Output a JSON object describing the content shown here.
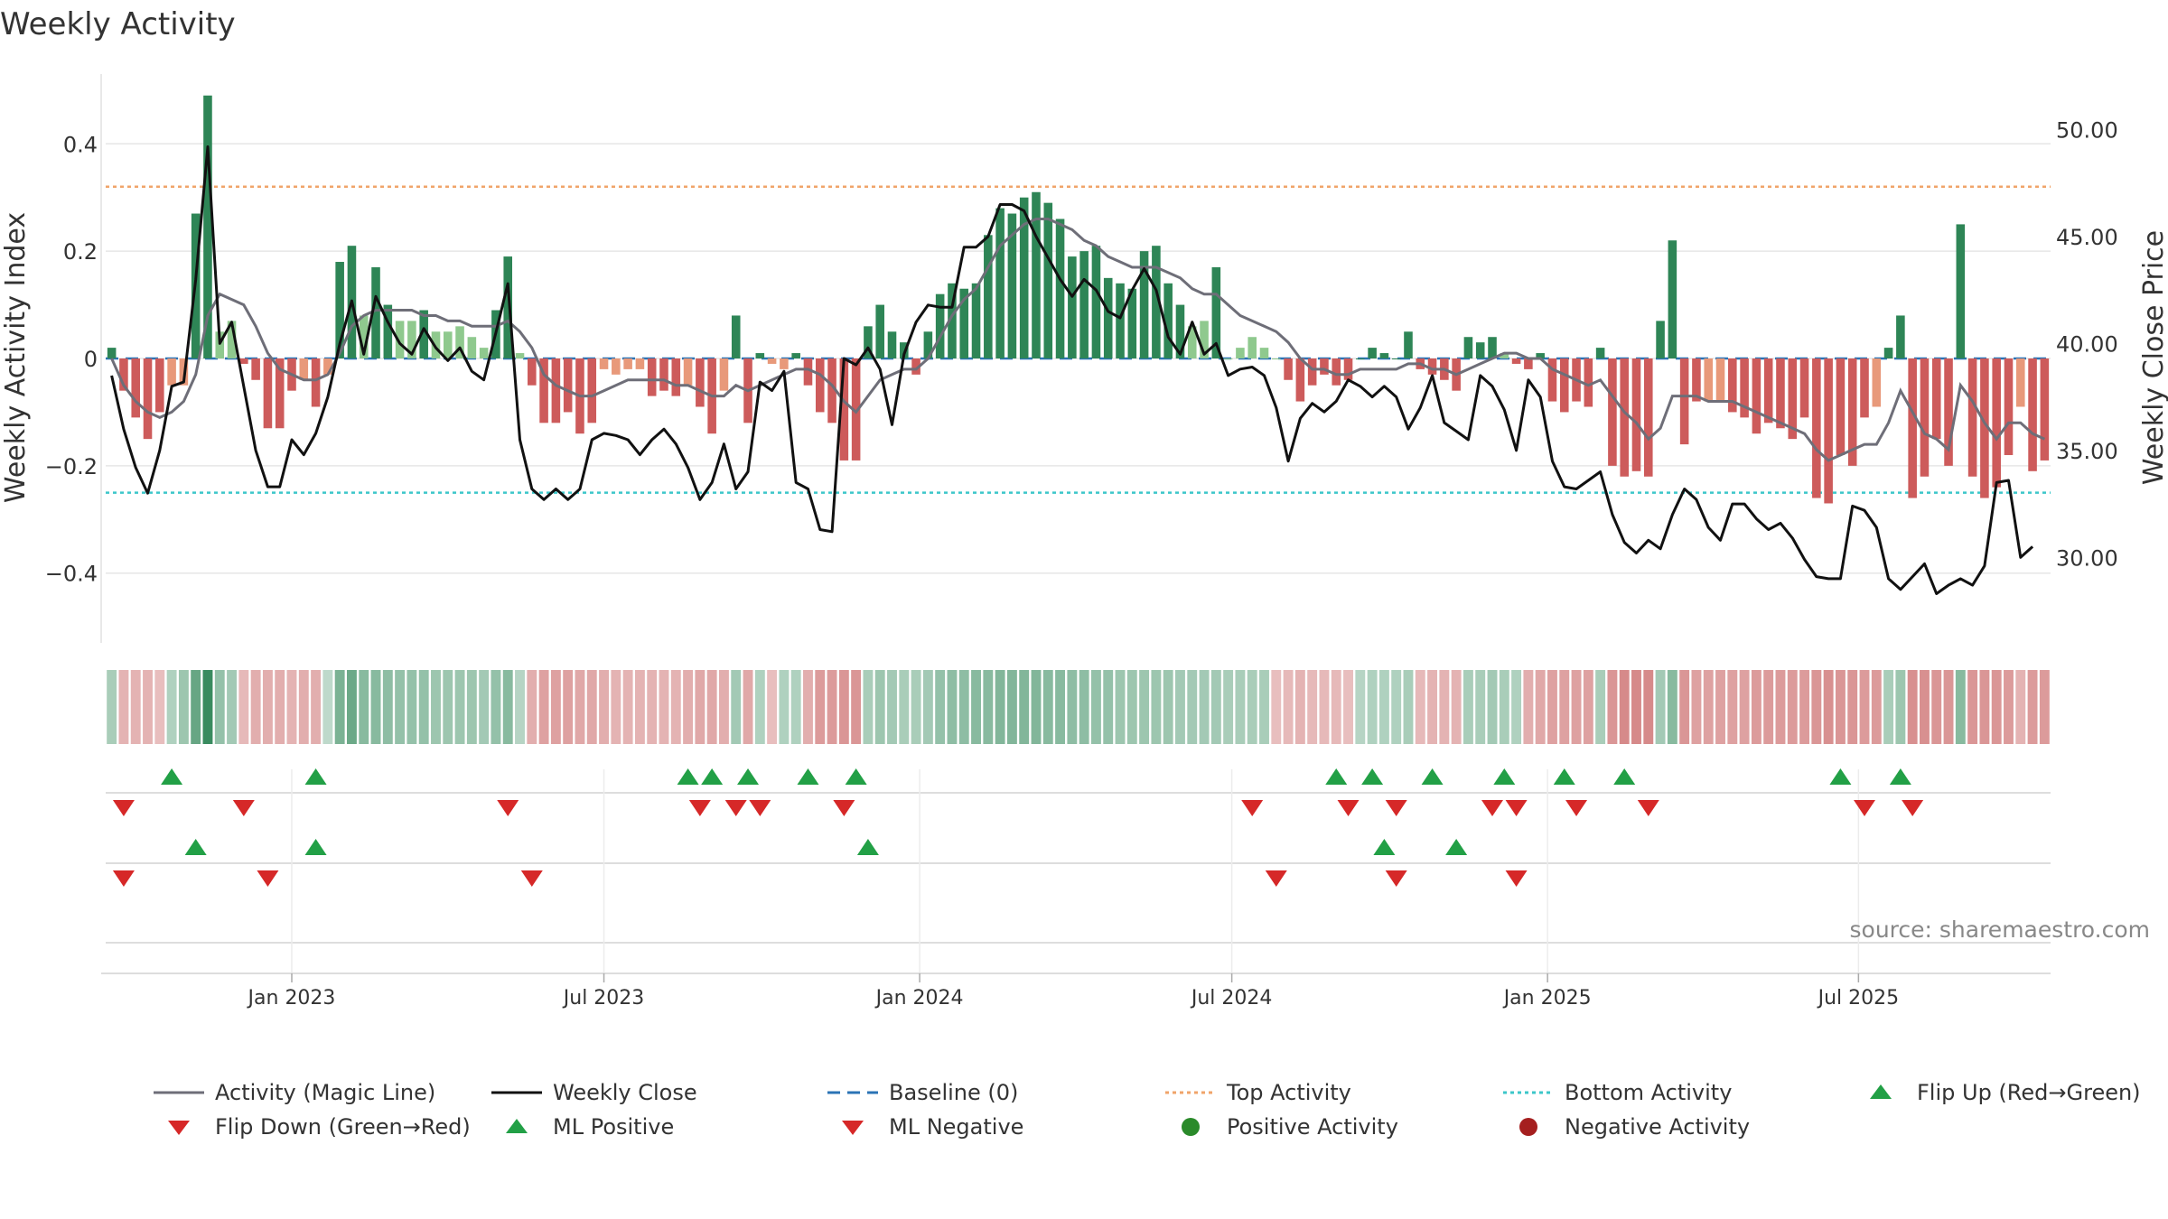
{
  "title": "Weekly Activity",
  "source": "source: sharemaestro.com",
  "colors": {
    "strong_green": "#2e8556",
    "light_green": "#8fc98e",
    "strong_red": "#cd5b5b",
    "light_red": "#e8997a",
    "magic_line": "#6e6e78",
    "close_line": "#111111",
    "baseline": "#2b73b5",
    "top_line": "#f0a46a",
    "bottom_line": "#3cc6c9",
    "flip_up": "#22a046",
    "flip_down": "#d62828",
    "positive_dot": "#2a8a2a",
    "negative_dot": "#a51f1f"
  },
  "chart_data": {
    "type": "bar",
    "xlabel": "",
    "ylabel": "Weekly Activity Index",
    "y2label": "Weekly Close Price",
    "ylim": [
      -0.53,
      0.53
    ],
    "y2lim": [
      26.0,
      52.6
    ],
    "y_ticks": [
      "0.4",
      "0.2",
      "0",
      "−0.2",
      "−0.4"
    ],
    "y_tick_values": [
      0.4,
      0.2,
      0,
      -0.2,
      -0.4
    ],
    "y2_ticks": [
      "50.00",
      "45.00",
      "40.00",
      "35.00",
      "30.00"
    ],
    "y2_tick_values": [
      50,
      45,
      40,
      35,
      30
    ],
    "x_ticks": [
      "Jan 2023",
      "Jul 2023",
      "Jan 2024",
      "Jul 2024",
      "Jan 2025",
      "Jul 2025"
    ],
    "x_tick_weeks": [
      15,
      41,
      67.3,
      93.3,
      119.6,
      145.5
    ],
    "top_activity": 0.32,
    "bottom_activity": -0.25,
    "baseline": 0,
    "activity": [
      0.02,
      -0.06,
      -0.11,
      -0.15,
      -0.1,
      -0.05,
      -0.05,
      0.27,
      0.49,
      0.05,
      0.07,
      -0.01,
      -0.04,
      -0.13,
      -0.13,
      -0.06,
      -0.04,
      -0.09,
      -0.03,
      0.18,
      0.21,
      0.08,
      0.17,
      0.1,
      0.07,
      0.07,
      0.09,
      0.05,
      0.05,
      0.06,
      0.04,
      0.02,
      0.09,
      0.19,
      0.01,
      -0.05,
      -0.12,
      -0.12,
      -0.1,
      -0.14,
      -0.12,
      -0.02,
      -0.03,
      -0.02,
      -0.02,
      -0.07,
      -0.06,
      -0.07,
      -0.05,
      -0.09,
      -0.14,
      -0.06,
      0.08,
      -0.12,
      0.01,
      -0.01,
      -0.02,
      0.01,
      -0.05,
      -0.1,
      -0.12,
      -0.19,
      -0.19,
      0.06,
      0.1,
      0.05,
      0.03,
      -0.03,
      0.05,
      0.12,
      0.14,
      0.13,
      0.14,
      0.23,
      0.28,
      0.27,
      0.3,
      0.31,
      0.29,
      0.26,
      0.19,
      0.2,
      0.21,
      0.15,
      0.14,
      0.13,
      0.2,
      0.21,
      0.14,
      0.1,
      0.06,
      0.07,
      0.17,
      0.0,
      0.02,
      0.04,
      0.02,
      0.0,
      -0.04,
      -0.08,
      -0.05,
      -0.03,
      -0.05,
      -0.04,
      0.0,
      0.02,
      0.01,
      0.0,
      0.05,
      -0.02,
      -0.03,
      -0.04,
      -0.06,
      0.04,
      0.03,
      0.04,
      0.01,
      -0.01,
      -0.02,
      0.01,
      -0.08,
      -0.1,
      -0.08,
      -0.09,
      0.02,
      -0.2,
      -0.22,
      -0.21,
      -0.22,
      0.07,
      0.22,
      -0.16,
      -0.08,
      -0.08,
      -0.08,
      -0.1,
      -0.11,
      -0.14,
      -0.12,
      -0.13,
      -0.15,
      -0.11,
      -0.26,
      -0.27,
      -0.18,
      -0.2,
      -0.11,
      -0.09,
      0.02,
      0.08,
      -0.26,
      -0.22,
      -0.15,
      -0.2,
      0.25,
      -0.22,
      -0.26,
      -0.24,
      -0.18,
      -0.09,
      -0.21,
      -0.19
    ],
    "magic_line": [
      0.0,
      -0.05,
      -0.08,
      -0.1,
      -0.11,
      -0.1,
      -0.08,
      -0.03,
      0.08,
      0.12,
      0.11,
      0.1,
      0.06,
      0.01,
      -0.02,
      -0.03,
      -0.04,
      -0.04,
      -0.03,
      0.01,
      0.06,
      0.08,
      0.09,
      0.09,
      0.09,
      0.09,
      0.08,
      0.08,
      0.07,
      0.07,
      0.06,
      0.06,
      0.06,
      0.07,
      0.05,
      0.02,
      -0.03,
      -0.05,
      -0.06,
      -0.07,
      -0.07,
      -0.06,
      -0.05,
      -0.04,
      -0.04,
      -0.04,
      -0.04,
      -0.05,
      -0.05,
      -0.06,
      -0.07,
      -0.07,
      -0.05,
      -0.06,
      -0.05,
      -0.04,
      -0.03,
      -0.02,
      -0.02,
      -0.03,
      -0.05,
      -0.08,
      -0.1,
      -0.07,
      -0.04,
      -0.03,
      -0.02,
      -0.02,
      0.0,
      0.04,
      0.08,
      0.11,
      0.13,
      0.17,
      0.21,
      0.23,
      0.25,
      0.26,
      0.26,
      0.25,
      0.24,
      0.22,
      0.21,
      0.19,
      0.18,
      0.17,
      0.17,
      0.17,
      0.16,
      0.15,
      0.13,
      0.12,
      0.12,
      0.1,
      0.08,
      0.07,
      0.06,
      0.05,
      0.03,
      0.0,
      -0.02,
      -0.02,
      -0.03,
      -0.03,
      -0.02,
      -0.02,
      -0.02,
      -0.02,
      -0.01,
      -0.01,
      -0.02,
      -0.02,
      -0.03,
      -0.02,
      -0.01,
      0.0,
      0.01,
      0.01,
      0.0,
      0.0,
      -0.02,
      -0.03,
      -0.04,
      -0.05,
      -0.04,
      -0.07,
      -0.1,
      -0.12,
      -0.15,
      -0.13,
      -0.07,
      -0.07,
      -0.07,
      -0.08,
      -0.08,
      -0.08,
      -0.09,
      -0.1,
      -0.11,
      -0.12,
      -0.13,
      -0.14,
      -0.17,
      -0.19,
      -0.18,
      -0.17,
      -0.16,
      -0.16,
      -0.12,
      -0.06,
      -0.1,
      -0.14,
      -0.15,
      -0.17,
      -0.05,
      -0.08,
      -0.12,
      -0.15,
      -0.12,
      -0.12,
      -0.14,
      -0.15
    ],
    "close": [
      38.5,
      36.0,
      34.2,
      33.0,
      35.0,
      38.0,
      38.2,
      43.0,
      49.2,
      40.0,
      41.0,
      38.0,
      35.0,
      33.3,
      33.3,
      35.5,
      34.8,
      35.8,
      37.5,
      40.0,
      42.0,
      39.5,
      42.2,
      41.0,
      40.0,
      39.5,
      40.7,
      39.8,
      39.2,
      39.8,
      38.7,
      38.3,
      40.5,
      42.8,
      35.5,
      33.2,
      32.7,
      33.2,
      32.7,
      33.2,
      35.5,
      35.8,
      35.7,
      35.5,
      34.8,
      35.5,
      36.0,
      35.3,
      34.2,
      32.7,
      33.5,
      35.3,
      33.2,
      34.0,
      38.2,
      37.8,
      38.7,
      33.5,
      33.2,
      31.3,
      31.2,
      39.3,
      39.0,
      39.8,
      38.8,
      36.2,
      39.5,
      41.0,
      41.8,
      41.7,
      41.7,
      44.5,
      44.5,
      45.0,
      46.5,
      46.5,
      46.2,
      45.0,
      44.0,
      43.0,
      42.2,
      43.0,
      42.5,
      41.5,
      41.2,
      42.5,
      43.5,
      42.5,
      40.3,
      39.5,
      41.0,
      39.5,
      40.0,
      38.5,
      38.8,
      38.9,
      38.5,
      37.0,
      34.5,
      36.5,
      37.2,
      36.8,
      37.3,
      38.3,
      38.0,
      37.5,
      38.0,
      37.5,
      36.0,
      37.0,
      38.5,
      36.3,
      35.9,
      35.5,
      38.5,
      38.0,
      36.9,
      35.0,
      38.3,
      37.5,
      34.5,
      33.3,
      33.2,
      33.6,
      34.0,
      32.0,
      30.7,
      30.2,
      30.8,
      30.4,
      32.0,
      33.2,
      32.7,
      31.4,
      30.8,
      32.5,
      32.5,
      31.8,
      31.3,
      31.6,
      30.9,
      29.9,
      29.1,
      29.0,
      29.0,
      32.4,
      32.2,
      31.4,
      29.0,
      28.5,
      29.1,
      29.7,
      28.3,
      28.7,
      29.0,
      28.7,
      29.6,
      33.5,
      33.6,
      30.0,
      30.5
    ],
    "ml_strip": [
      0.05,
      -0.05,
      -0.05,
      -0.05,
      -0.03,
      0.04,
      0.07,
      0.15,
      0.22,
      0.08,
      0.06,
      -0.04,
      -0.06,
      -0.06,
      -0.06,
      -0.05,
      -0.06,
      -0.06,
      0.02,
      0.12,
      0.14,
      0.1,
      0.1,
      0.09,
      0.08,
      0.08,
      0.08,
      0.07,
      0.07,
      0.07,
      0.07,
      0.06,
      0.08,
      0.1,
      0.03,
      -0.06,
      -0.08,
      -0.08,
      -0.08,
      -0.07,
      -0.07,
      -0.06,
      -0.05,
      -0.05,
      -0.05,
      -0.05,
      -0.05,
      -0.05,
      -0.06,
      -0.07,
      -0.07,
      -0.06,
      0.06,
      -0.07,
      0.04,
      -0.03,
      0.04,
      0.04,
      -0.06,
      -0.09,
      -0.09,
      -0.1,
      -0.1,
      0.05,
      0.07,
      0.06,
      0.05,
      0.05,
      0.06,
      0.08,
      0.09,
      0.09,
      0.1,
      0.1,
      0.11,
      0.11,
      0.11,
      0.11,
      0.1,
      0.1,
      0.09,
      0.09,
      0.08,
      0.08,
      0.07,
      0.07,
      0.07,
      0.07,
      0.07,
      0.06,
      0.06,
      0.06,
      0.06,
      0.05,
      0.05,
      0.05,
      0.05,
      -0.03,
      -0.04,
      -0.05,
      -0.04,
      -0.04,
      -0.04,
      -0.03,
      0.03,
      0.04,
      0.04,
      0.04,
      0.05,
      -0.04,
      -0.05,
      -0.05,
      -0.05,
      0.05,
      0.05,
      0.06,
      0.05,
      0.04,
      -0.06,
      -0.07,
      -0.08,
      -0.08,
      -0.08,
      -0.08,
      0.05,
      -0.1,
      -0.12,
      -0.12,
      -0.12,
      0.06,
      0.1,
      -0.1,
      -0.08,
      -0.08,
      -0.08,
      -0.08,
      -0.08,
      -0.09,
      -0.09,
      -0.09,
      -0.09,
      -0.09,
      -0.1,
      -0.11,
      -0.1,
      -0.1,
      -0.09,
      -0.09,
      0.05,
      0.07,
      -0.11,
      -0.11,
      -0.1,
      -0.1,
      0.1,
      -0.1,
      -0.1,
      -0.1,
      -0.09,
      -0.05,
      -0.09,
      -0.09
    ],
    "flip_up_weeks": [
      5,
      17,
      48,
      50,
      53,
      58,
      62,
      102,
      105,
      110,
      116,
      121,
      126,
      144,
      149
    ],
    "flip_down_weeks": [
      1,
      11,
      33,
      49,
      52,
      54,
      61,
      95,
      103,
      107,
      115,
      117,
      122,
      128,
      146,
      150
    ],
    "ml_pos_weeks": [
      7,
      17,
      63,
      106,
      112
    ],
    "ml_neg_weeks": [
      1,
      13,
      35,
      97,
      107,
      117
    ]
  },
  "legend": [
    {
      "label": "Activity (Magic Line)",
      "icon": "solid-grey-line"
    },
    {
      "label": "Weekly Close",
      "icon": "solid-black-line"
    },
    {
      "label": "Baseline (0)",
      "icon": "dashed-blue-line"
    },
    {
      "label": "Top Activity",
      "icon": "dotted-orange-line"
    },
    {
      "label": "Bottom Activity",
      "icon": "dotted-cyan-line"
    },
    {
      "label": "Flip Up (Red→Green)",
      "icon": "green-up-triangle-icon"
    },
    {
      "label": "Flip Down (Green→Red)",
      "icon": "red-down-triangle-icon"
    },
    {
      "label": "ML Positive",
      "icon": "green-up-triangle-icon"
    },
    {
      "label": "ML Negative",
      "icon": "red-down-triangle-icon"
    },
    {
      "label": "Positive Activity",
      "icon": "green-dot-icon"
    },
    {
      "label": "Negative Activity",
      "icon": "red-dot-icon"
    }
  ]
}
